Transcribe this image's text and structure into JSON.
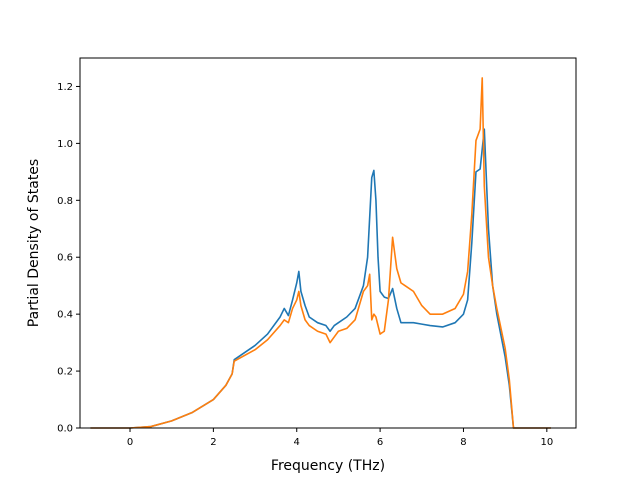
{
  "chart_data": {
    "type": "line",
    "xlabel": "Frequency (THz)",
    "ylabel": "Partial Density of States",
    "xlim": [
      -1.2,
      10.7
    ],
    "ylim": [
      0.0,
      1.3
    ],
    "xticks": [
      0,
      2,
      4,
      6,
      8,
      10
    ],
    "xtick_labels": [
      "0",
      "2",
      "4",
      "6",
      "8",
      "10"
    ],
    "yticks": [
      0.0,
      0.2,
      0.4,
      0.6,
      0.8,
      1.0,
      1.2
    ],
    "ytick_labels": [
      "0.0",
      "0.2",
      "0.4",
      "0.6",
      "0.8",
      "1.0",
      "1.2"
    ],
    "grid": false,
    "series": [
      {
        "color": "#1f77b4",
        "x": [
          -0.95,
          0.0,
          0.5,
          1.0,
          1.5,
          2.0,
          2.3,
          2.45,
          2.5,
          3.0,
          3.3,
          3.6,
          3.7,
          3.8,
          3.9,
          4.0,
          4.05,
          4.1,
          4.2,
          4.3,
          4.5,
          4.7,
          4.8,
          4.9,
          5.0,
          5.2,
          5.4,
          5.6,
          5.7,
          5.8,
          5.85,
          5.9,
          5.95,
          6.0,
          6.1,
          6.2,
          6.3,
          6.4,
          6.5,
          6.6,
          6.8,
          7.0,
          7.2,
          7.5,
          7.8,
          8.0,
          8.1,
          8.2,
          8.3,
          8.4,
          8.5,
          8.6,
          8.7,
          8.8,
          9.0,
          9.1,
          9.2,
          9.3,
          10.1
        ],
        "y": [
          0.0,
          0.0,
          0.005,
          0.025,
          0.055,
          0.1,
          0.15,
          0.19,
          0.24,
          0.29,
          0.33,
          0.39,
          0.42,
          0.395,
          0.45,
          0.51,
          0.55,
          0.48,
          0.43,
          0.39,
          0.37,
          0.36,
          0.34,
          0.36,
          0.37,
          0.39,
          0.42,
          0.5,
          0.6,
          0.88,
          0.905,
          0.8,
          0.6,
          0.48,
          0.46,
          0.455,
          0.49,
          0.42,
          0.37,
          0.37,
          0.37,
          0.365,
          0.36,
          0.355,
          0.37,
          0.4,
          0.45,
          0.65,
          0.9,
          0.91,
          1.05,
          0.7,
          0.5,
          0.4,
          0.25,
          0.15,
          0.0,
          0.0,
          0.0
        ]
      },
      {
        "color": "#ff7f0e",
        "x": [
          -0.95,
          0.0,
          0.5,
          1.0,
          1.5,
          2.0,
          2.3,
          2.45,
          2.5,
          3.0,
          3.3,
          3.6,
          3.7,
          3.8,
          3.9,
          4.0,
          4.05,
          4.1,
          4.2,
          4.3,
          4.5,
          4.7,
          4.8,
          4.9,
          5.0,
          5.2,
          5.4,
          5.6,
          5.7,
          5.75,
          5.8,
          5.85,
          5.9,
          6.0,
          6.1,
          6.2,
          6.3,
          6.4,
          6.5,
          6.6,
          6.8,
          7.0,
          7.2,
          7.5,
          7.8,
          8.0,
          8.1,
          8.2,
          8.3,
          8.4,
          8.45,
          8.5,
          8.6,
          8.7,
          8.8,
          9.0,
          9.1,
          9.2,
          9.3,
          10.1
        ],
        "y": [
          0.0,
          0.0,
          0.005,
          0.025,
          0.055,
          0.1,
          0.15,
          0.19,
          0.235,
          0.275,
          0.31,
          0.36,
          0.38,
          0.37,
          0.42,
          0.45,
          0.48,
          0.43,
          0.38,
          0.36,
          0.34,
          0.33,
          0.3,
          0.32,
          0.34,
          0.35,
          0.38,
          0.48,
          0.5,
          0.54,
          0.38,
          0.4,
          0.39,
          0.33,
          0.34,
          0.45,
          0.67,
          0.56,
          0.51,
          0.5,
          0.48,
          0.43,
          0.4,
          0.4,
          0.42,
          0.47,
          0.55,
          0.75,
          1.01,
          1.05,
          1.23,
          0.85,
          0.6,
          0.5,
          0.42,
          0.28,
          0.17,
          0.0,
          0.0,
          0.0
        ]
      }
    ]
  }
}
